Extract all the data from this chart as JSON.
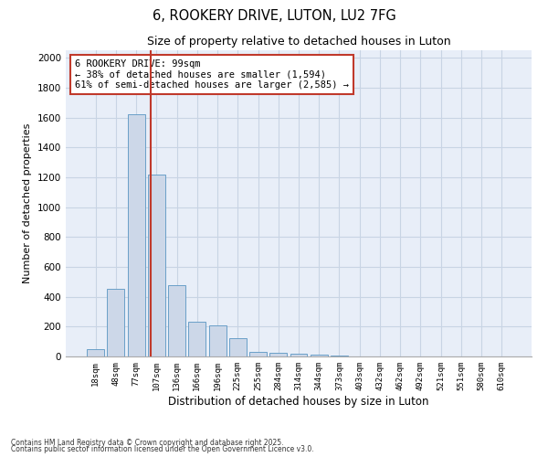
{
  "title1": "6, ROOKERY DRIVE, LUTON, LU2 7FG",
  "title2": "Size of property relative to detached houses in Luton",
  "xlabel": "Distribution of detached houses by size in Luton",
  "ylabel": "Number of detached properties",
  "categories": [
    "18sqm",
    "48sqm",
    "77sqm",
    "107sqm",
    "136sqm",
    "166sqm",
    "196sqm",
    "225sqm",
    "255sqm",
    "284sqm",
    "314sqm",
    "344sqm",
    "373sqm",
    "403sqm",
    "432sqm",
    "462sqm",
    "492sqm",
    "521sqm",
    "551sqm",
    "580sqm",
    "610sqm"
  ],
  "values": [
    50,
    450,
    1620,
    1220,
    480,
    230,
    210,
    120,
    30,
    22,
    18,
    10,
    5,
    3,
    2,
    1,
    1,
    0,
    0,
    0,
    0
  ],
  "bar_color": "#ccd7e8",
  "bar_edge_color": "#6a9fc8",
  "vline_color": "#c0392b",
  "annotation_text": "6 ROOKERY DRIVE: 99sqm\n← 38% of detached houses are smaller (1,594)\n61% of semi-detached houses are larger (2,585) →",
  "annotation_box_color": "#c0392b",
  "ylim": [
    0,
    2050
  ],
  "yticks": [
    0,
    200,
    400,
    600,
    800,
    1000,
    1200,
    1400,
    1600,
    1800,
    2000
  ],
  "grid_color": "#c8d4e4",
  "bg_color": "#e8eef8",
  "footer1": "Contains HM Land Registry data © Crown copyright and database right 2025.",
  "footer2": "Contains public sector information licensed under the Open Government Licence v3.0."
}
